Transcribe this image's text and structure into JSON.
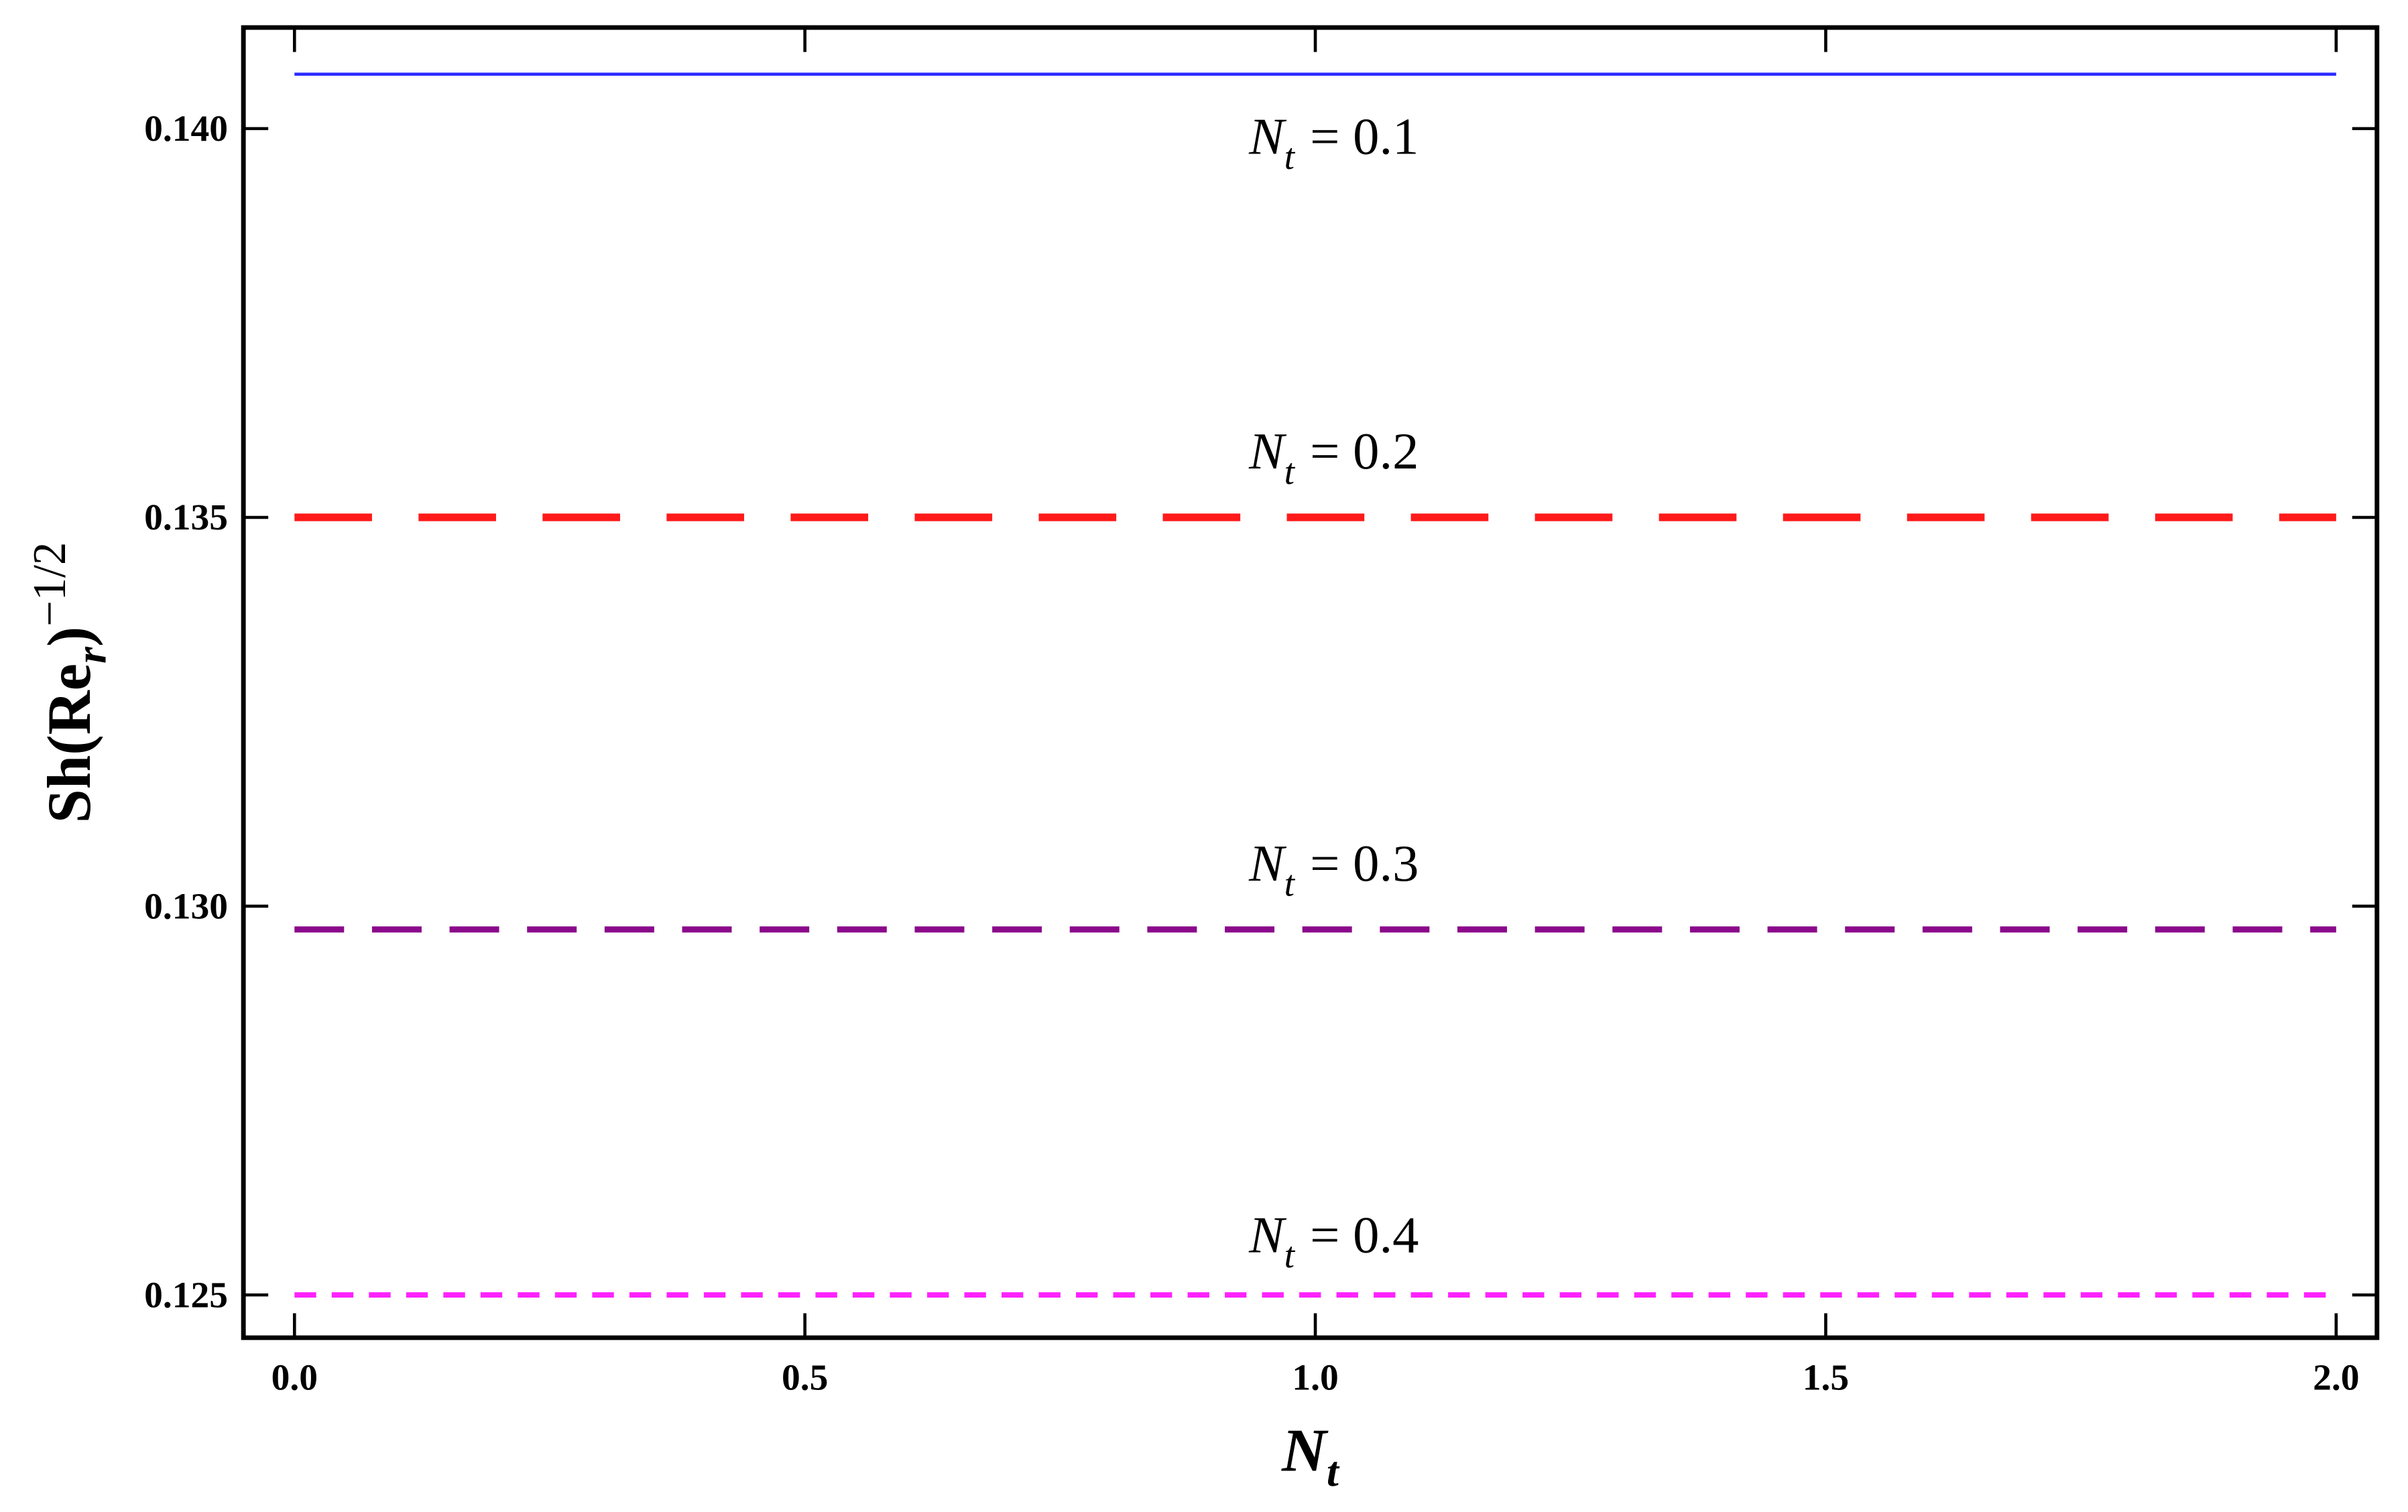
{
  "chart_data": {
    "type": "line",
    "x_label": {
      "main": "N",
      "sub": "t"
    },
    "y_label": {
      "main": "Sh(Re",
      "sub": "r",
      "close": ")",
      "sup": "−1/2"
    },
    "xlim": [
      -0.05,
      2.04
    ],
    "ylim": [
      0.12445,
      0.1413
    ],
    "xticks": [
      {
        "value": 0,
        "label": "0.0"
      },
      0.5,
      {
        "value": 1,
        "label": "1.0"
      },
      1.5,
      {
        "value": 2,
        "label": "2.0"
      }
    ],
    "yticks": [
      {
        "value": 0.125,
        "label": "0.125"
      },
      {
        "value": 0.13,
        "label": "0.130"
      },
      {
        "value": 0.135,
        "label": "0.135"
      },
      {
        "value": 0.14,
        "label": "0.140"
      }
    ],
    "series": [
      {
        "label": {
          "main": "N",
          "sub": "t",
          "rest": "= 0.1"
        },
        "color": "#2b2bff",
        "x": [
          0,
          2
        ],
        "values": [
          0.1407,
          0.1407
        ]
      },
      {
        "label": {
          "main": "N",
          "sub": "t",
          "rest": "= 0.2"
        },
        "color": "#ff1a1a",
        "x": [
          0,
          2
        ],
        "values": [
          0.135,
          0.135
        ]
      },
      {
        "label": {
          "main": "N",
          "sub": "t",
          "rest": "= 0.3"
        },
        "color": "#8b0a8b",
        "x": [
          0,
          2
        ],
        "values": [
          0.1297,
          0.1297
        ]
      },
      {
        "label": {
          "main": "N",
          "sub": "t",
          "rest": "= 0.4"
        },
        "color": "#ff22ff",
        "x": [
          0,
          2
        ],
        "values": [
          0.125,
          0.125
        ]
      }
    ]
  }
}
